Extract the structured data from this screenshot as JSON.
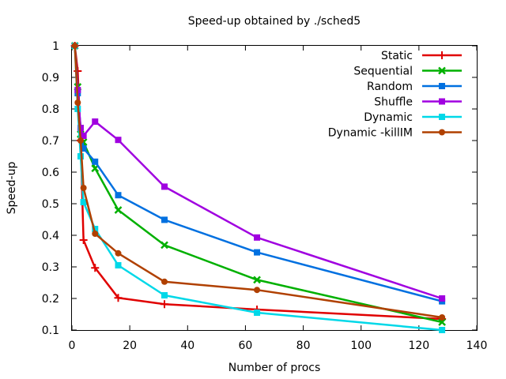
{
  "chart_data": {
    "type": "line",
    "title": "Speed-up obtained by ./sched5",
    "xlabel": "Number of procs",
    "ylabel": "Speed-up",
    "xlim": [
      0,
      140
    ],
    "ylim": [
      0.1,
      1
    ],
    "x_ticks": [
      "0",
      "20",
      "40",
      "60",
      "80",
      "100",
      "120",
      "140"
    ],
    "y_ticks": [
      "0.1",
      "0.2",
      "0.3",
      "0.4",
      "0.5",
      "0.6",
      "0.7",
      "0.8",
      "0.9",
      "1"
    ],
    "grid": false,
    "legend_position": "top-right",
    "x": [
      1,
      2,
      3,
      4,
      8,
      16,
      32,
      64,
      128
    ],
    "series": [
      {
        "name": "Static",
        "color": "#e00000",
        "marker": "plus",
        "values": [
          1.0,
          0.92,
          0.7,
          0.385,
          0.297,
          0.202,
          0.182,
          0.165,
          0.135
        ]
      },
      {
        "name": "Sequential",
        "color": "#00b000",
        "marker": "cross",
        "values": [
          1.0,
          0.87,
          0.72,
          0.695,
          0.612,
          0.48,
          0.369,
          0.259,
          0.125
        ]
      },
      {
        "name": "Random",
        "color": "#0070e0",
        "marker": "square",
        "values": [
          1.0,
          0.85,
          0.74,
          0.675,
          0.633,
          0.527,
          0.449,
          0.346,
          0.191
        ]
      },
      {
        "name": "Shuffle",
        "color": "#a000e0",
        "marker": "square",
        "values": [
          1.0,
          0.86,
          0.74,
          0.715,
          0.76,
          0.702,
          0.554,
          0.393,
          0.2
        ]
      },
      {
        "name": "Dynamic",
        "color": "#00d8e8",
        "marker": "square",
        "values": [
          1.0,
          0.8,
          0.65,
          0.505,
          0.42,
          0.305,
          0.21,
          0.155,
          0.1
        ]
      },
      {
        "name": "Dynamic -killIM",
        "color": "#b04000",
        "marker": "circle",
        "values": [
          1.0,
          0.82,
          0.7,
          0.55,
          0.405,
          0.343,
          0.253,
          0.227,
          0.14
        ]
      }
    ]
  }
}
